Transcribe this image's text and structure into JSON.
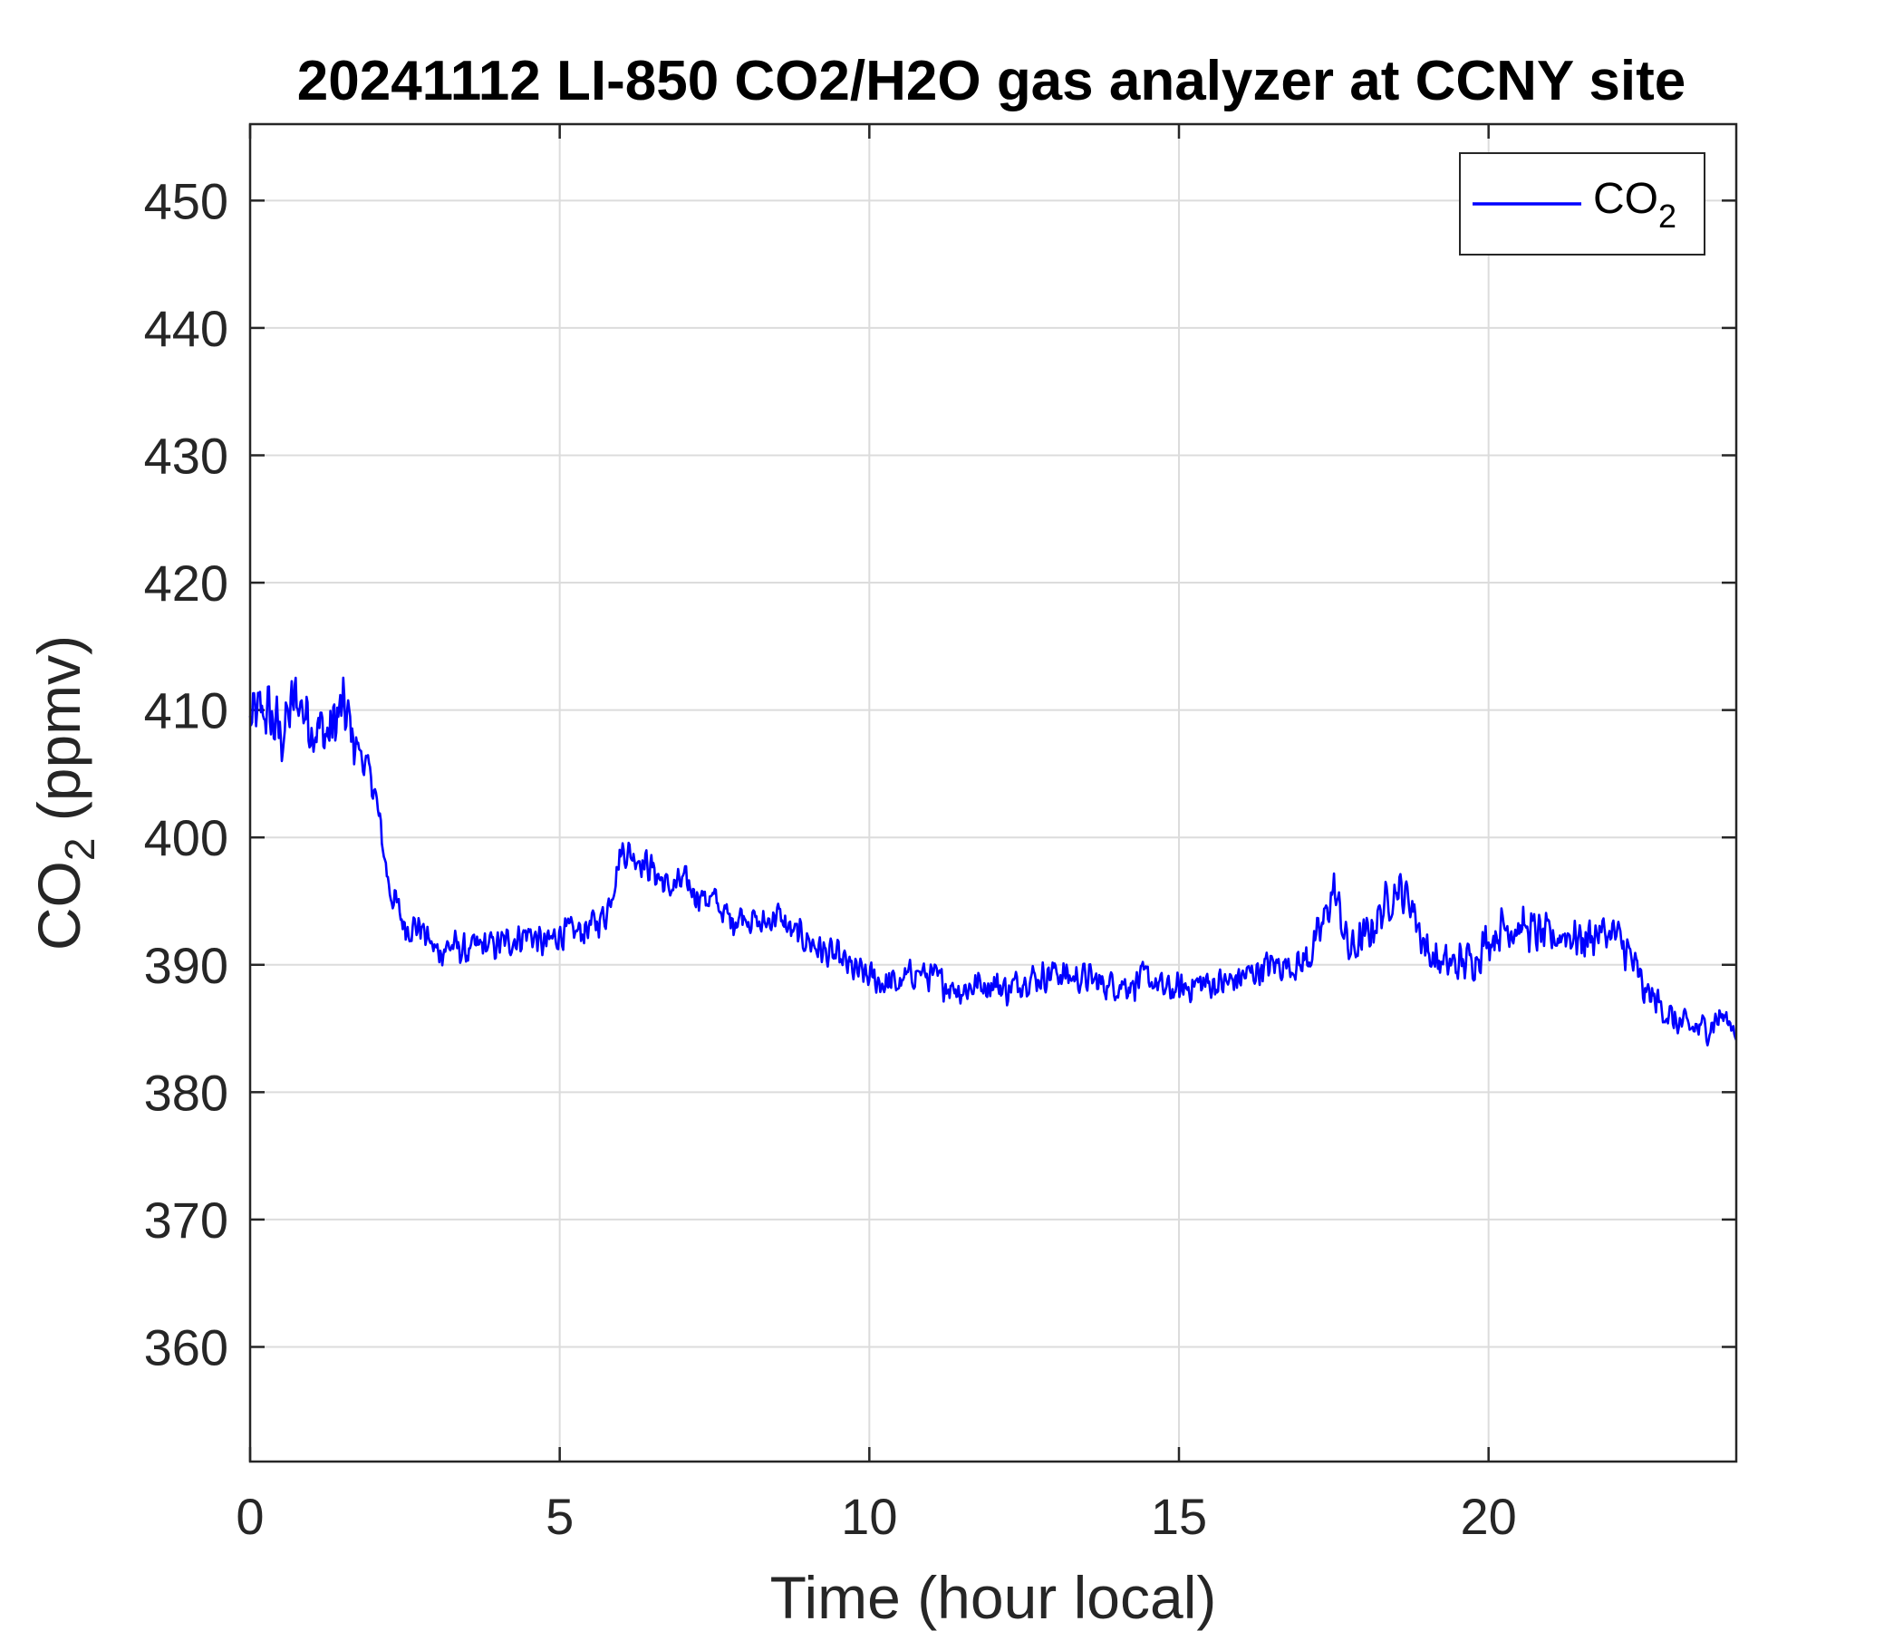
{
  "chart_data": {
    "type": "line",
    "title": "20241112 LI-850 CO2/H2O gas analyzer at CCNY site",
    "xlabel": "Time (hour local)",
    "ylabel": {
      "main": "CO",
      "sub": "2",
      "suffix": " (ppmv)"
    },
    "xlim": [
      0,
      24
    ],
    "ylim": [
      351,
      456
    ],
    "xticks": [
      0,
      5,
      10,
      15,
      20
    ],
    "xtick_labels": [
      "0",
      "5",
      "10",
      "15",
      "20"
    ],
    "yticks": [
      360,
      370,
      380,
      390,
      400,
      410,
      420,
      430,
      440,
      450
    ],
    "ytick_labels": [
      "360",
      "370",
      "380",
      "390",
      "400",
      "410",
      "420",
      "430",
      "440",
      "450"
    ],
    "grid": true,
    "legend_position": "top-right",
    "series": [
      {
        "name": {
          "main": "CO",
          "sub": "2"
        },
        "color": "#0000ff",
        "x": [
          0.0,
          0.25,
          0.5,
          0.75,
          1.0,
          1.25,
          1.5,
          1.75,
          2.0,
          2.25,
          2.5,
          2.75,
          3.0,
          3.25,
          3.5,
          3.75,
          4.0,
          4.25,
          4.5,
          4.75,
          5.0,
          5.25,
          5.5,
          5.75,
          6.0,
          6.25,
          6.5,
          6.75,
          7.0,
          7.25,
          7.5,
          7.75,
          8.0,
          8.25,
          8.5,
          8.75,
          9.0,
          9.25,
          9.5,
          9.75,
          10.0,
          10.25,
          10.5,
          10.75,
          11.0,
          11.25,
          11.5,
          11.75,
          12.0,
          12.25,
          12.5,
          12.75,
          13.0,
          13.25,
          13.5,
          13.75,
          14.0,
          14.25,
          14.5,
          14.75,
          15.0,
          15.25,
          15.5,
          15.75,
          16.0,
          16.25,
          16.5,
          16.75,
          17.0,
          17.25,
          17.5,
          17.75,
          18.0,
          18.25,
          18.5,
          18.75,
          19.0,
          19.25,
          19.5,
          19.75,
          20.0,
          20.25,
          20.5,
          20.75,
          21.0,
          21.25,
          21.5,
          21.75,
          22.0,
          22.25,
          22.5,
          22.75,
          23.0,
          23.25,
          23.5,
          23.75,
          24.0
        ],
        "y": [
          409,
          410,
          408,
          411,
          409,
          408,
          410,
          407,
          404,
          396,
          393,
          393,
          391,
          391.5,
          391,
          391.5,
          391.5,
          392,
          392.5,
          391.5,
          392.5,
          392.5,
          393,
          394,
          399,
          398.5,
          397.5,
          396,
          396.5,
          395.5,
          395,
          393.5,
          394,
          393,
          394,
          392.5,
          392,
          391,
          390.5,
          389.5,
          389,
          388.5,
          388.5,
          389.5,
          389,
          388.5,
          388,
          388.5,
          388.5,
          388,
          389,
          389,
          389.5,
          389,
          389,
          388.5,
          388.5,
          388.5,
          389,
          388,
          388,
          388.5,
          388.5,
          388.5,
          389,
          389.5,
          390,
          390,
          390,
          392,
          396,
          391,
          392,
          394,
          396,
          395,
          391,
          390,
          390,
          390.5,
          392,
          393,
          393,
          392.5,
          392,
          392.5,
          392,
          392.5,
          392.5,
          391,
          388,
          387,
          385.5,
          385,
          385,
          386,
          385
        ]
      }
    ]
  }
}
